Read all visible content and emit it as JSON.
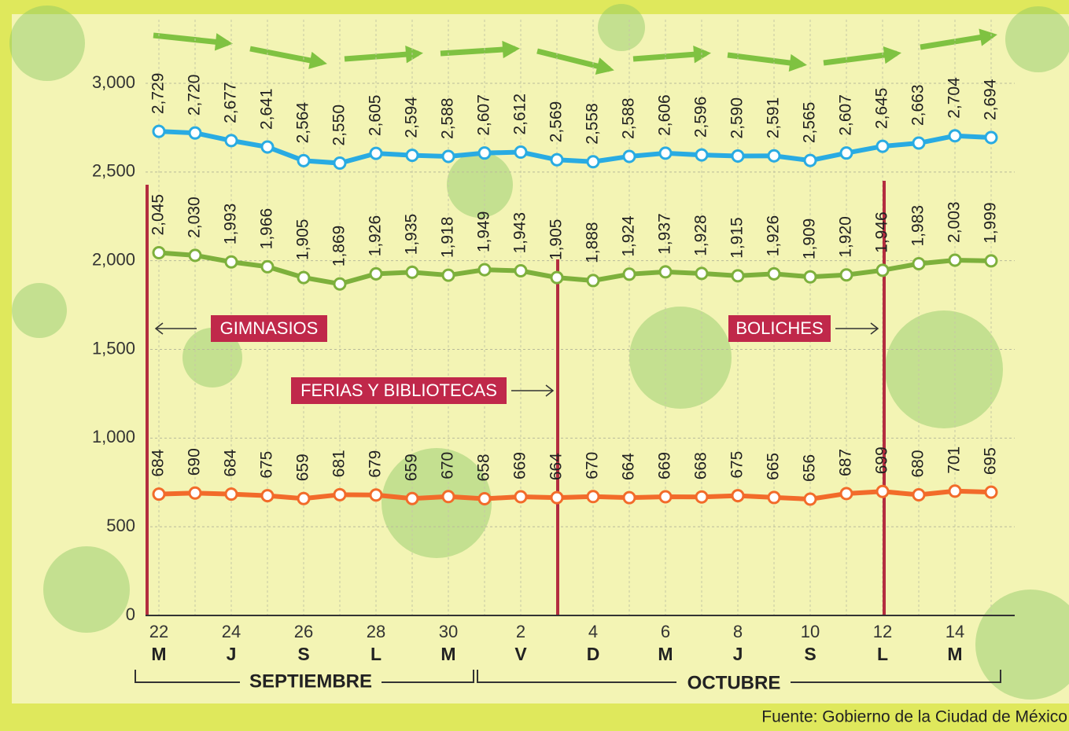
{
  "chart_data": {
    "type": "line",
    "categories": [
      "22",
      null,
      "24",
      null,
      "26",
      null,
      "28",
      null,
      "30",
      null,
      "2",
      null,
      "4",
      null,
      "6",
      null,
      "8",
      null,
      "10",
      null,
      "12",
      null,
      "14",
      null
    ],
    "weekdays": [
      "M",
      null,
      "J",
      null,
      "S",
      null,
      "L",
      null,
      "M",
      null,
      "V",
      null,
      "D",
      null,
      "M",
      null,
      "J",
      null,
      "S",
      null,
      "L",
      null,
      "M",
      null
    ],
    "months": [
      "SEPTIEMBRE",
      "OCTUBRE"
    ],
    "ylim": [
      0,
      3350
    ],
    "yticks": [
      0,
      {
        "value": 500,
        "label": "500"
      },
      {
        "value": 1000,
        "label": "1,000"
      },
      {
        "value": 1500,
        "label": "1,500"
      },
      {
        "value": 2000,
        "label": "2,000"
      },
      {
        "value": 2500,
        "label": "2,500"
      },
      {
        "value": 3000,
        "label": "3,000"
      }
    ],
    "grid": true,
    "series": [
      {
        "color": "#29abe2",
        "values": [
          2729,
          2720,
          2677,
          2641,
          2564,
          2550,
          2605,
          2594,
          2588,
          2607,
          2612,
          2569,
          2558,
          2588,
          2606,
          2596,
          2590,
          2591,
          2565,
          2607,
          2645,
          2663,
          2704,
          2694
        ],
        "value_labels": [
          "2,729",
          "2,720",
          "2,677",
          "2,641",
          "2,564",
          "2,550",
          "2,605",
          "2,594",
          "2,588",
          "2,607",
          "2,612",
          "2,569",
          "2,558",
          "2,588",
          "2,606",
          "2,596",
          "2,590",
          "2,591",
          "2,565",
          "2,607",
          "2,645",
          "2,663",
          "2,704",
          "2,694"
        ]
      },
      {
        "color": "#7db03c",
        "values": [
          2045,
          2030,
          1993,
          1966,
          1905,
          1869,
          1926,
          1935,
          1918,
          1949,
          1943,
          1905,
          1888,
          1924,
          1937,
          1928,
          1915,
          1926,
          1909,
          1920,
          1946,
          1983,
          2003,
          1999
        ],
        "value_labels": [
          "2,045",
          "2,030",
          "1,993",
          "1,966",
          "1,905",
          "1,869",
          "1,926",
          "1,935",
          "1,918",
          "1,949",
          "1,943",
          "1,905",
          "1,888",
          "1,924",
          "1,937",
          "1,928",
          "1,915",
          "1,926",
          "1,909",
          "1,920",
          "1,946",
          "1,983",
          "2,003",
          "1,999"
        ]
      },
      {
        "color": "#f26b2a",
        "values": [
          684,
          690,
          684,
          675,
          659,
          681,
          679,
          659,
          670,
          658,
          669,
          664,
          670,
          664,
          669,
          668,
          675,
          665,
          656,
          687,
          699,
          680,
          701,
          695
        ]
      }
    ],
    "annotations": [
      "GIMNASIOS",
      "FERIAS Y BIBLIOTECAS",
      "BOLICHES"
    ],
    "source": "Fuente: Gobierno de la Ciudad de México"
  }
}
